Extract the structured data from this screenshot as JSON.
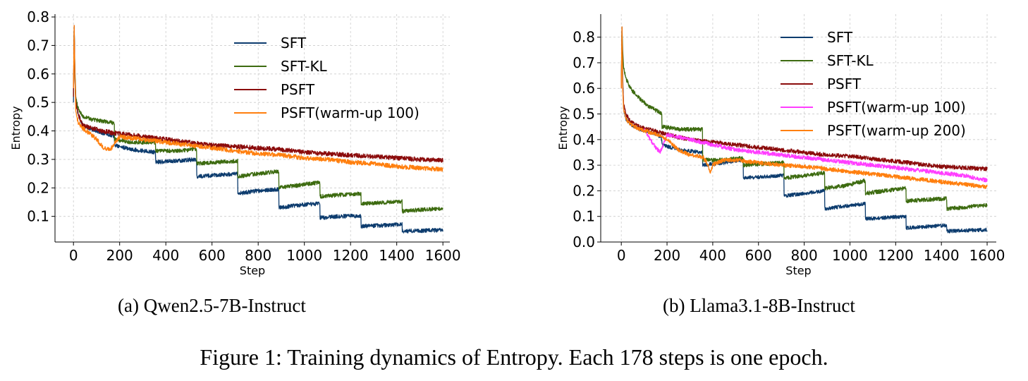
{
  "figure_caption": "Figure 1: Training dynamics of Entropy. Each 178 steps is one epoch.",
  "chart_data": [
    {
      "type": "line",
      "caption": "(a) Qwen2.5-7B-Instruct",
      "xlabel": "Step",
      "ylabel": "Entropy",
      "xlim": [
        -80,
        1630
      ],
      "ylim": [
        0.01,
        0.81
      ],
      "xticks": [
        0,
        200,
        400,
        600,
        800,
        1000,
        1200,
        1400,
        1600
      ],
      "yticks": [
        0.1,
        0.2,
        0.3,
        0.4,
        0.5,
        0.6,
        0.7,
        0.8
      ],
      "grid": true,
      "legend_position": "top-right",
      "series": [
        {
          "name": "SFT",
          "color": "#0d3c6e",
          "noise": 0.007,
          "x": [
            0,
            3,
            6,
            10,
            20,
            40,
            80,
            120,
            160,
            177,
            178,
            250,
            355,
            356,
            450,
            533,
            534,
            620,
            711,
            712,
            800,
            889,
            890,
            980,
            1067,
            1068,
            1150,
            1245,
            1246,
            1330,
            1423,
            1424,
            1500,
            1600
          ],
          "y": [
            0.5,
            0.77,
            0.6,
            0.5,
            0.46,
            0.42,
            0.405,
            0.395,
            0.385,
            0.38,
            0.35,
            0.335,
            0.325,
            0.29,
            0.295,
            0.3,
            0.24,
            0.245,
            0.25,
            0.18,
            0.19,
            0.195,
            0.13,
            0.14,
            0.145,
            0.095,
            0.1,
            0.102,
            0.065,
            0.068,
            0.072,
            0.048,
            0.05,
            0.052
          ]
        },
        {
          "name": "SFT-KL",
          "color": "#3d6b10",
          "noise": 0.007,
          "x": [
            0,
            3,
            6,
            10,
            20,
            40,
            80,
            120,
            160,
            177,
            178,
            250,
            355,
            356,
            450,
            533,
            534,
            620,
            711,
            712,
            800,
            889,
            890,
            980,
            1067,
            1068,
            1150,
            1245,
            1246,
            1330,
            1423,
            1424,
            1500,
            1600
          ],
          "y": [
            0.52,
            0.77,
            0.62,
            0.52,
            0.48,
            0.45,
            0.44,
            0.435,
            0.43,
            0.425,
            0.37,
            0.36,
            0.36,
            0.33,
            0.33,
            0.335,
            0.285,
            0.29,
            0.295,
            0.24,
            0.25,
            0.258,
            0.2,
            0.21,
            0.22,
            0.17,
            0.175,
            0.18,
            0.145,
            0.148,
            0.152,
            0.118,
            0.123,
            0.128
          ]
        },
        {
          "name": "PSFT",
          "color": "#8b0b0b",
          "noise": 0.008,
          "x": [
            0,
            3,
            6,
            10,
            20,
            40,
            80,
            120,
            160,
            200,
            300,
            400,
            500,
            600,
            700,
            800,
            900,
            1000,
            1100,
            1200,
            1300,
            1400,
            1500,
            1600
          ],
          "y": [
            0.52,
            0.77,
            0.6,
            0.5,
            0.46,
            0.42,
            0.41,
            0.4,
            0.395,
            0.39,
            0.38,
            0.37,
            0.36,
            0.35,
            0.345,
            0.34,
            0.335,
            0.325,
            0.32,
            0.315,
            0.31,
            0.305,
            0.3,
            0.297
          ]
        },
        {
          "name": "PSFT(warm-up 100)",
          "color": "#ff7f0e",
          "noise": 0.008,
          "x": [
            0,
            3,
            6,
            10,
            20,
            40,
            80,
            100,
            130,
            160,
            200,
            300,
            400,
            500,
            600,
            700,
            800,
            900,
            1000,
            1100,
            1200,
            1300,
            1400,
            1500,
            1600
          ],
          "y": [
            0.55,
            0.77,
            0.6,
            0.47,
            0.43,
            0.41,
            0.385,
            0.37,
            0.34,
            0.335,
            0.38,
            0.37,
            0.36,
            0.35,
            0.34,
            0.33,
            0.32,
            0.315,
            0.305,
            0.3,
            0.29,
            0.285,
            0.275,
            0.27,
            0.265
          ]
        }
      ]
    },
    {
      "type": "line",
      "caption": "(b) Llama3.1-8B-Instruct",
      "xlabel": "Step",
      "ylabel": "Entropy",
      "xlim": [
        -90,
        1640
      ],
      "ylim": [
        0.0,
        0.89
      ],
      "xticks": [
        0,
        200,
        400,
        600,
        800,
        1000,
        1200,
        1400,
        1600
      ],
      "yticks": [
        0.0,
        0.1,
        0.2,
        0.3,
        0.4,
        0.5,
        0.6,
        0.7,
        0.8
      ],
      "grid": true,
      "legend_position": "top-right",
      "series": [
        {
          "name": "SFT",
          "color": "#0d3c6e",
          "noise": 0.007,
          "x": [
            0,
            3,
            6,
            10,
            20,
            40,
            80,
            120,
            160,
            177,
            178,
            250,
            355,
            356,
            450,
            533,
            534,
            620,
            711,
            712,
            800,
            889,
            890,
            980,
            1067,
            1068,
            1150,
            1245,
            1246,
            1330,
            1423,
            1424,
            1500,
            1600
          ],
          "y": [
            0.6,
            0.84,
            0.65,
            0.52,
            0.48,
            0.46,
            0.44,
            0.43,
            0.42,
            0.4,
            0.38,
            0.36,
            0.35,
            0.3,
            0.31,
            0.32,
            0.25,
            0.255,
            0.26,
            0.18,
            0.19,
            0.2,
            0.13,
            0.14,
            0.15,
            0.09,
            0.095,
            0.1,
            0.055,
            0.06,
            0.065,
            0.042,
            0.045,
            0.048
          ]
        },
        {
          "name": "SFT-KL",
          "color": "#3d6b10",
          "noise": 0.008,
          "x": [
            0,
            3,
            6,
            10,
            20,
            40,
            80,
            120,
            160,
            177,
            178,
            250,
            355,
            356,
            450,
            533,
            534,
            620,
            711,
            712,
            800,
            889,
            890,
            980,
            1067,
            1068,
            1150,
            1245,
            1246,
            1330,
            1423,
            1424,
            1500,
            1600
          ],
          "y": [
            0.62,
            0.84,
            0.75,
            0.68,
            0.64,
            0.6,
            0.56,
            0.53,
            0.51,
            0.5,
            0.45,
            0.44,
            0.44,
            0.32,
            0.32,
            0.33,
            0.3,
            0.305,
            0.31,
            0.25,
            0.26,
            0.27,
            0.21,
            0.22,
            0.24,
            0.19,
            0.2,
            0.21,
            0.16,
            0.165,
            0.17,
            0.13,
            0.135,
            0.145
          ]
        },
        {
          "name": "PSFT",
          "color": "#8b0b0b",
          "noise": 0.008,
          "x": [
            0,
            3,
            6,
            10,
            20,
            40,
            80,
            120,
            160,
            200,
            300,
            400,
            500,
            600,
            700,
            800,
            900,
            1000,
            1100,
            1200,
            1300,
            1400,
            1500,
            1600
          ],
          "y": [
            0.6,
            0.84,
            0.62,
            0.54,
            0.5,
            0.47,
            0.45,
            0.44,
            0.43,
            0.42,
            0.4,
            0.39,
            0.38,
            0.37,
            0.36,
            0.35,
            0.34,
            0.335,
            0.325,
            0.315,
            0.305,
            0.295,
            0.29,
            0.285
          ]
        },
        {
          "name": "PSFT(warm-up 100)",
          "color": "#ff3dff",
          "noise": 0.008,
          "x": [
            100,
            120,
            150,
            170,
            200,
            300,
            400,
            500,
            600,
            700,
            800,
            900,
            1000,
            1100,
            1200,
            1300,
            1400,
            1500,
            1600
          ],
          "y": [
            0.44,
            0.41,
            0.37,
            0.35,
            0.42,
            0.4,
            0.38,
            0.36,
            0.35,
            0.34,
            0.33,
            0.32,
            0.31,
            0.3,
            0.29,
            0.28,
            0.27,
            0.26,
            0.24
          ]
        },
        {
          "name": "PSFT(warm-up 200)",
          "color": "#ff7f0e",
          "noise": 0.008,
          "x": [
            0,
            3,
            6,
            10,
            20,
            40,
            80,
            120,
            160,
            200,
            250,
            300,
            360,
            380,
            390,
            400,
            420,
            450,
            500,
            600,
            700,
            800,
            900,
            1000,
            1100,
            1200,
            1300,
            1400,
            1500,
            1600
          ],
          "y": [
            0.6,
            0.84,
            0.6,
            0.52,
            0.48,
            0.46,
            0.44,
            0.43,
            0.42,
            0.4,
            0.36,
            0.34,
            0.33,
            0.3,
            0.27,
            0.3,
            0.31,
            0.32,
            0.32,
            0.31,
            0.3,
            0.295,
            0.285,
            0.275,
            0.265,
            0.255,
            0.245,
            0.235,
            0.225,
            0.215
          ]
        }
      ]
    }
  ]
}
